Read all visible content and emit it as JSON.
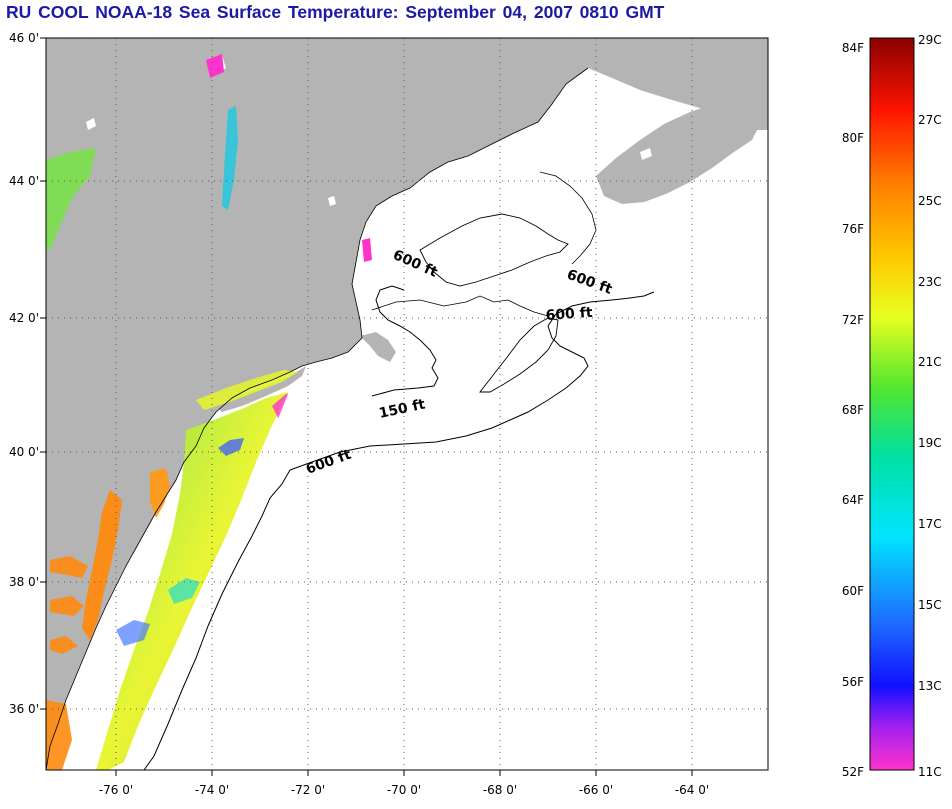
{
  "title": "RU COOL  NOAA-18  Sea Surface Temperature:  September 04, 2007 0810 GMT",
  "lat_labels": [
    "46 0'",
    "44 0'",
    "42 0'",
    "40 0'",
    "38 0'",
    "36 0'"
  ],
  "lon_labels": [
    "-76 0'",
    "-74 0'",
    "-72 0'",
    "-70 0'",
    "-68 0'",
    "-66 0'",
    "-64 0'"
  ],
  "contour_labels": [
    "600 ft",
    "600 ft",
    "600 ft",
    "150 ft",
    "600 ft"
  ],
  "colorbar": {
    "f_labels": [
      "84F",
      "80F",
      "76F",
      "72F",
      "68F",
      "64F",
      "60F",
      "56F",
      "52F"
    ],
    "c_labels": [
      "29C",
      "27C",
      "25C",
      "23C",
      "21C",
      "19C",
      "17C",
      "15C",
      "13C",
      "11C"
    ]
  },
  "colors": {
    "land": "#b4b4b4",
    "ocean": "#ffffff",
    "title": "#1a1aa6"
  }
}
